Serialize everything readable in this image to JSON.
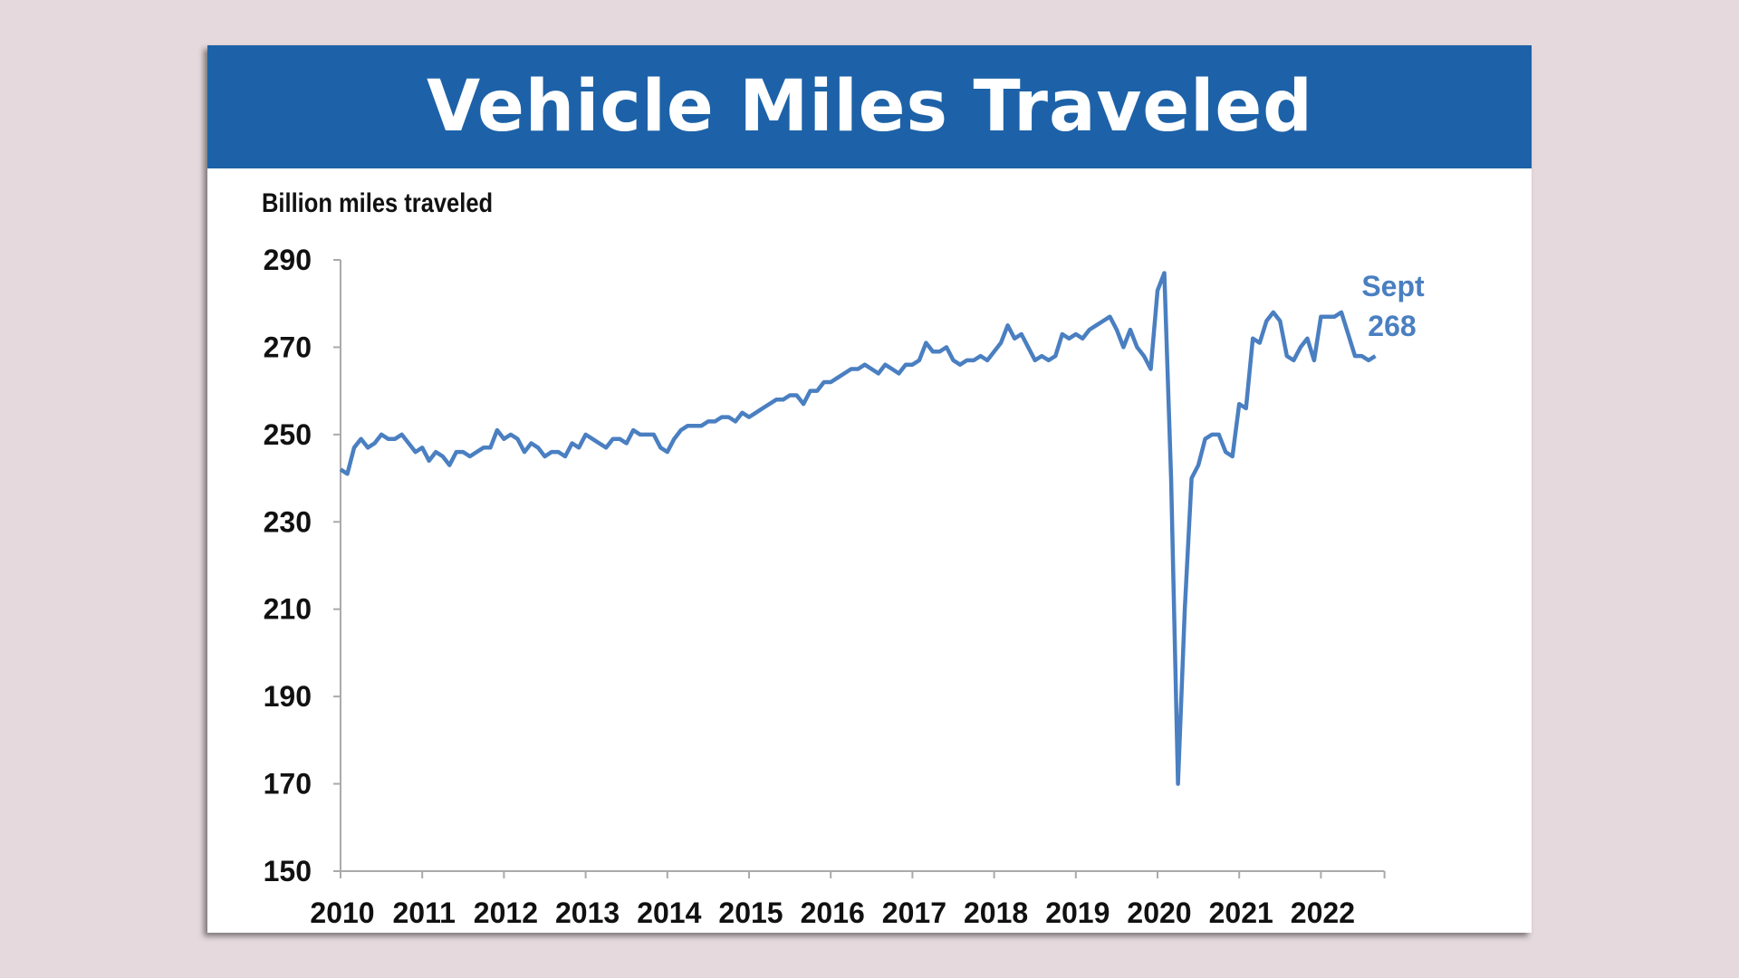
{
  "chart_data": {
    "type": "line",
    "title": "Vehicle Miles Traveled",
    "ylabel": "Billion miles traveled",
    "xlabel": "",
    "ylim": [
      150,
      290
    ],
    "yticks": [
      150,
      170,
      190,
      210,
      230,
      250,
      270,
      290
    ],
    "xticks": [
      "2010",
      "2011",
      "2012",
      "2013",
      "2014",
      "2015",
      "2016",
      "2017",
      "2018",
      "2019",
      "2020",
      "2021",
      "2022"
    ],
    "x_start": "2010-01",
    "x_end": "2022-09",
    "frequency": "monthly",
    "grid": false,
    "line_color": "#4a7fc1",
    "header_color": "#1d62a8",
    "annotation": {
      "line1": "Sept",
      "line2": "268"
    },
    "values": [
      242,
      241,
      247,
      249,
      247,
      248,
      250,
      249,
      249,
      250,
      248,
      246,
      247,
      244,
      246,
      245,
      243,
      246,
      246,
      245,
      246,
      247,
      247,
      251,
      249,
      250,
      249,
      246,
      248,
      247,
      245,
      246,
      246,
      245,
      248,
      247,
      250,
      249,
      248,
      247,
      249,
      249,
      248,
      251,
      250,
      250,
      250,
      247,
      246,
      249,
      251,
      252,
      252,
      252,
      253,
      253,
      254,
      254,
      253,
      255,
      254,
      255,
      256,
      257,
      258,
      258,
      259,
      259,
      257,
      260,
      260,
      262,
      262,
      263,
      264,
      265,
      265,
      266,
      265,
      264,
      266,
      265,
      264,
      266,
      266,
      267,
      271,
      269,
      269,
      270,
      267,
      266,
      267,
      267,
      268,
      267,
      269,
      271,
      275,
      272,
      273,
      270,
      267,
      268,
      267,
      268,
      273,
      272,
      273,
      272,
      274,
      275,
      276,
      277,
      274,
      270,
      274,
      270,
      268,
      265,
      283,
      287,
      240,
      170,
      210,
      240,
      243,
      249,
      250,
      250,
      246,
      245,
      257,
      256,
      272,
      271,
      276,
      278,
      276,
      268,
      267,
      270,
      272,
      267,
      277,
      277,
      277,
      278,
      273,
      268,
      268,
      267,
      268
    ]
  }
}
